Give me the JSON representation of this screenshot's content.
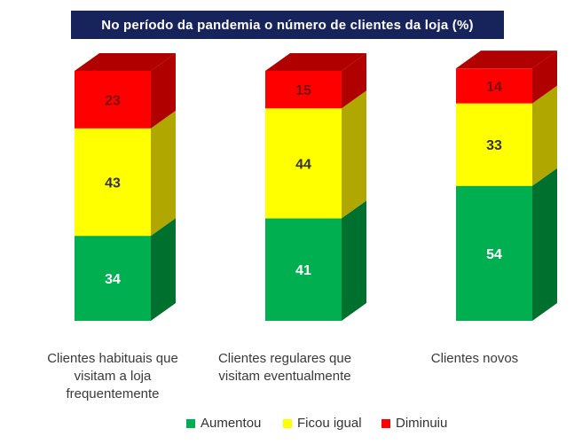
{
  "chart_data": {
    "type": "bar",
    "stacked": true,
    "three_d": true,
    "title": "No período da pandemia o número de clientes da loja (%)",
    "categories": [
      "Clientes habituais que visitam a loja frequentemente",
      "Clientes regulares que visitam eventualmente",
      "Clientes novos"
    ],
    "category_lines": [
      [
        "Clientes habituais que",
        "visitam a loja",
        "frequentemente"
      ],
      [
        "Clientes regulares que",
        "visitam eventualmente"
      ],
      [
        "Clientes novos"
      ]
    ],
    "series": [
      {
        "name": "Aumentou",
        "values": [
          34,
          41,
          54
        ],
        "color": "#00b050",
        "side_color": "#00702f",
        "label_color": "#ffffff"
      },
      {
        "name": "Ficou igual",
        "values": [
          43,
          44,
          33
        ],
        "color": "#ffff00",
        "side_color": "#b0a800",
        "label_color": "#333333"
      },
      {
        "name": "Diminuiu",
        "values": [
          23,
          15,
          14
        ],
        "color": "#ff0000",
        "side_color": "#b00000",
        "label_color": "#7a1010"
      }
    ],
    "ylim": [
      0,
      100
    ],
    "legend_position": "bottom"
  }
}
